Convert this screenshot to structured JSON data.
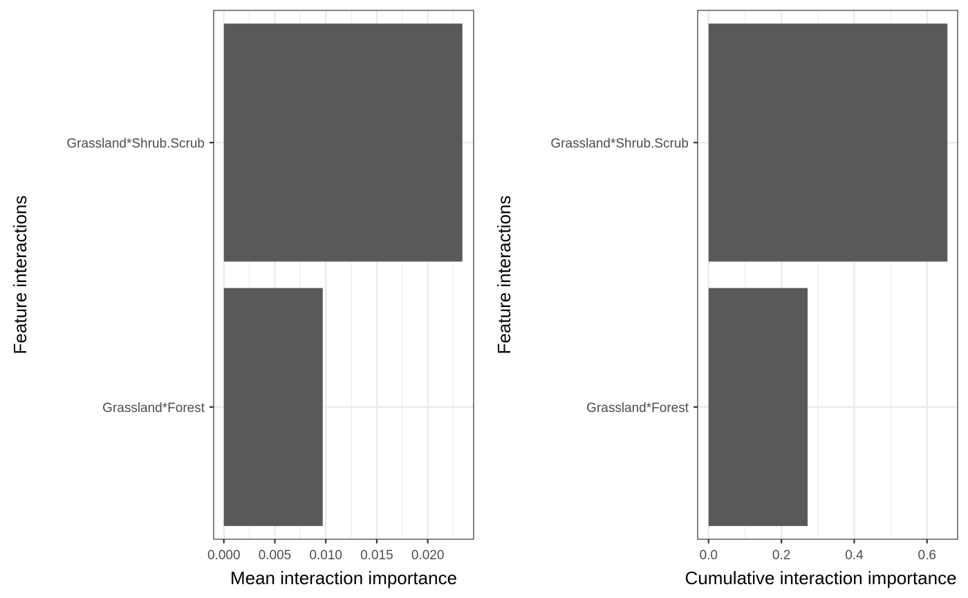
{
  "chart_data": [
    {
      "type": "bar",
      "orientation": "horizontal",
      "categories": [
        "Grassland*Shrub.Scrub",
        "Grassland*Forest"
      ],
      "values": [
        0.0234,
        0.0097
      ],
      "xlabel": "Mean interaction importance",
      "ylabel": "Feature interactions",
      "xlim": [
        -0.001,
        0.0245
      ],
      "xticks": [
        0.0,
        0.005,
        0.01,
        0.015,
        0.02
      ],
      "xtick_labels": [
        "0.000",
        "0.005",
        "0.010",
        "0.015",
        "0.020"
      ],
      "grid": true,
      "bar_color": "#595959",
      "gridline_color": "#ebebeb",
      "panel_border_color": "#333333"
    },
    {
      "type": "bar",
      "orientation": "horizontal",
      "categories": [
        "Grassland*Shrub.Scrub",
        "Grassland*Forest"
      ],
      "values": [
        0.656,
        0.272
      ],
      "xlabel": "Cumulative interaction importance",
      "ylabel": "Feature interactions",
      "xlim": [
        -0.03,
        0.684
      ],
      "xticks": [
        0.0,
        0.2,
        0.4,
        0.6
      ],
      "xtick_labels": [
        "0.0",
        "0.2",
        "0.4",
        "0.6"
      ],
      "grid": true,
      "bar_color": "#595959",
      "gridline_color": "#ebebeb",
      "panel_border_color": "#333333"
    }
  ]
}
